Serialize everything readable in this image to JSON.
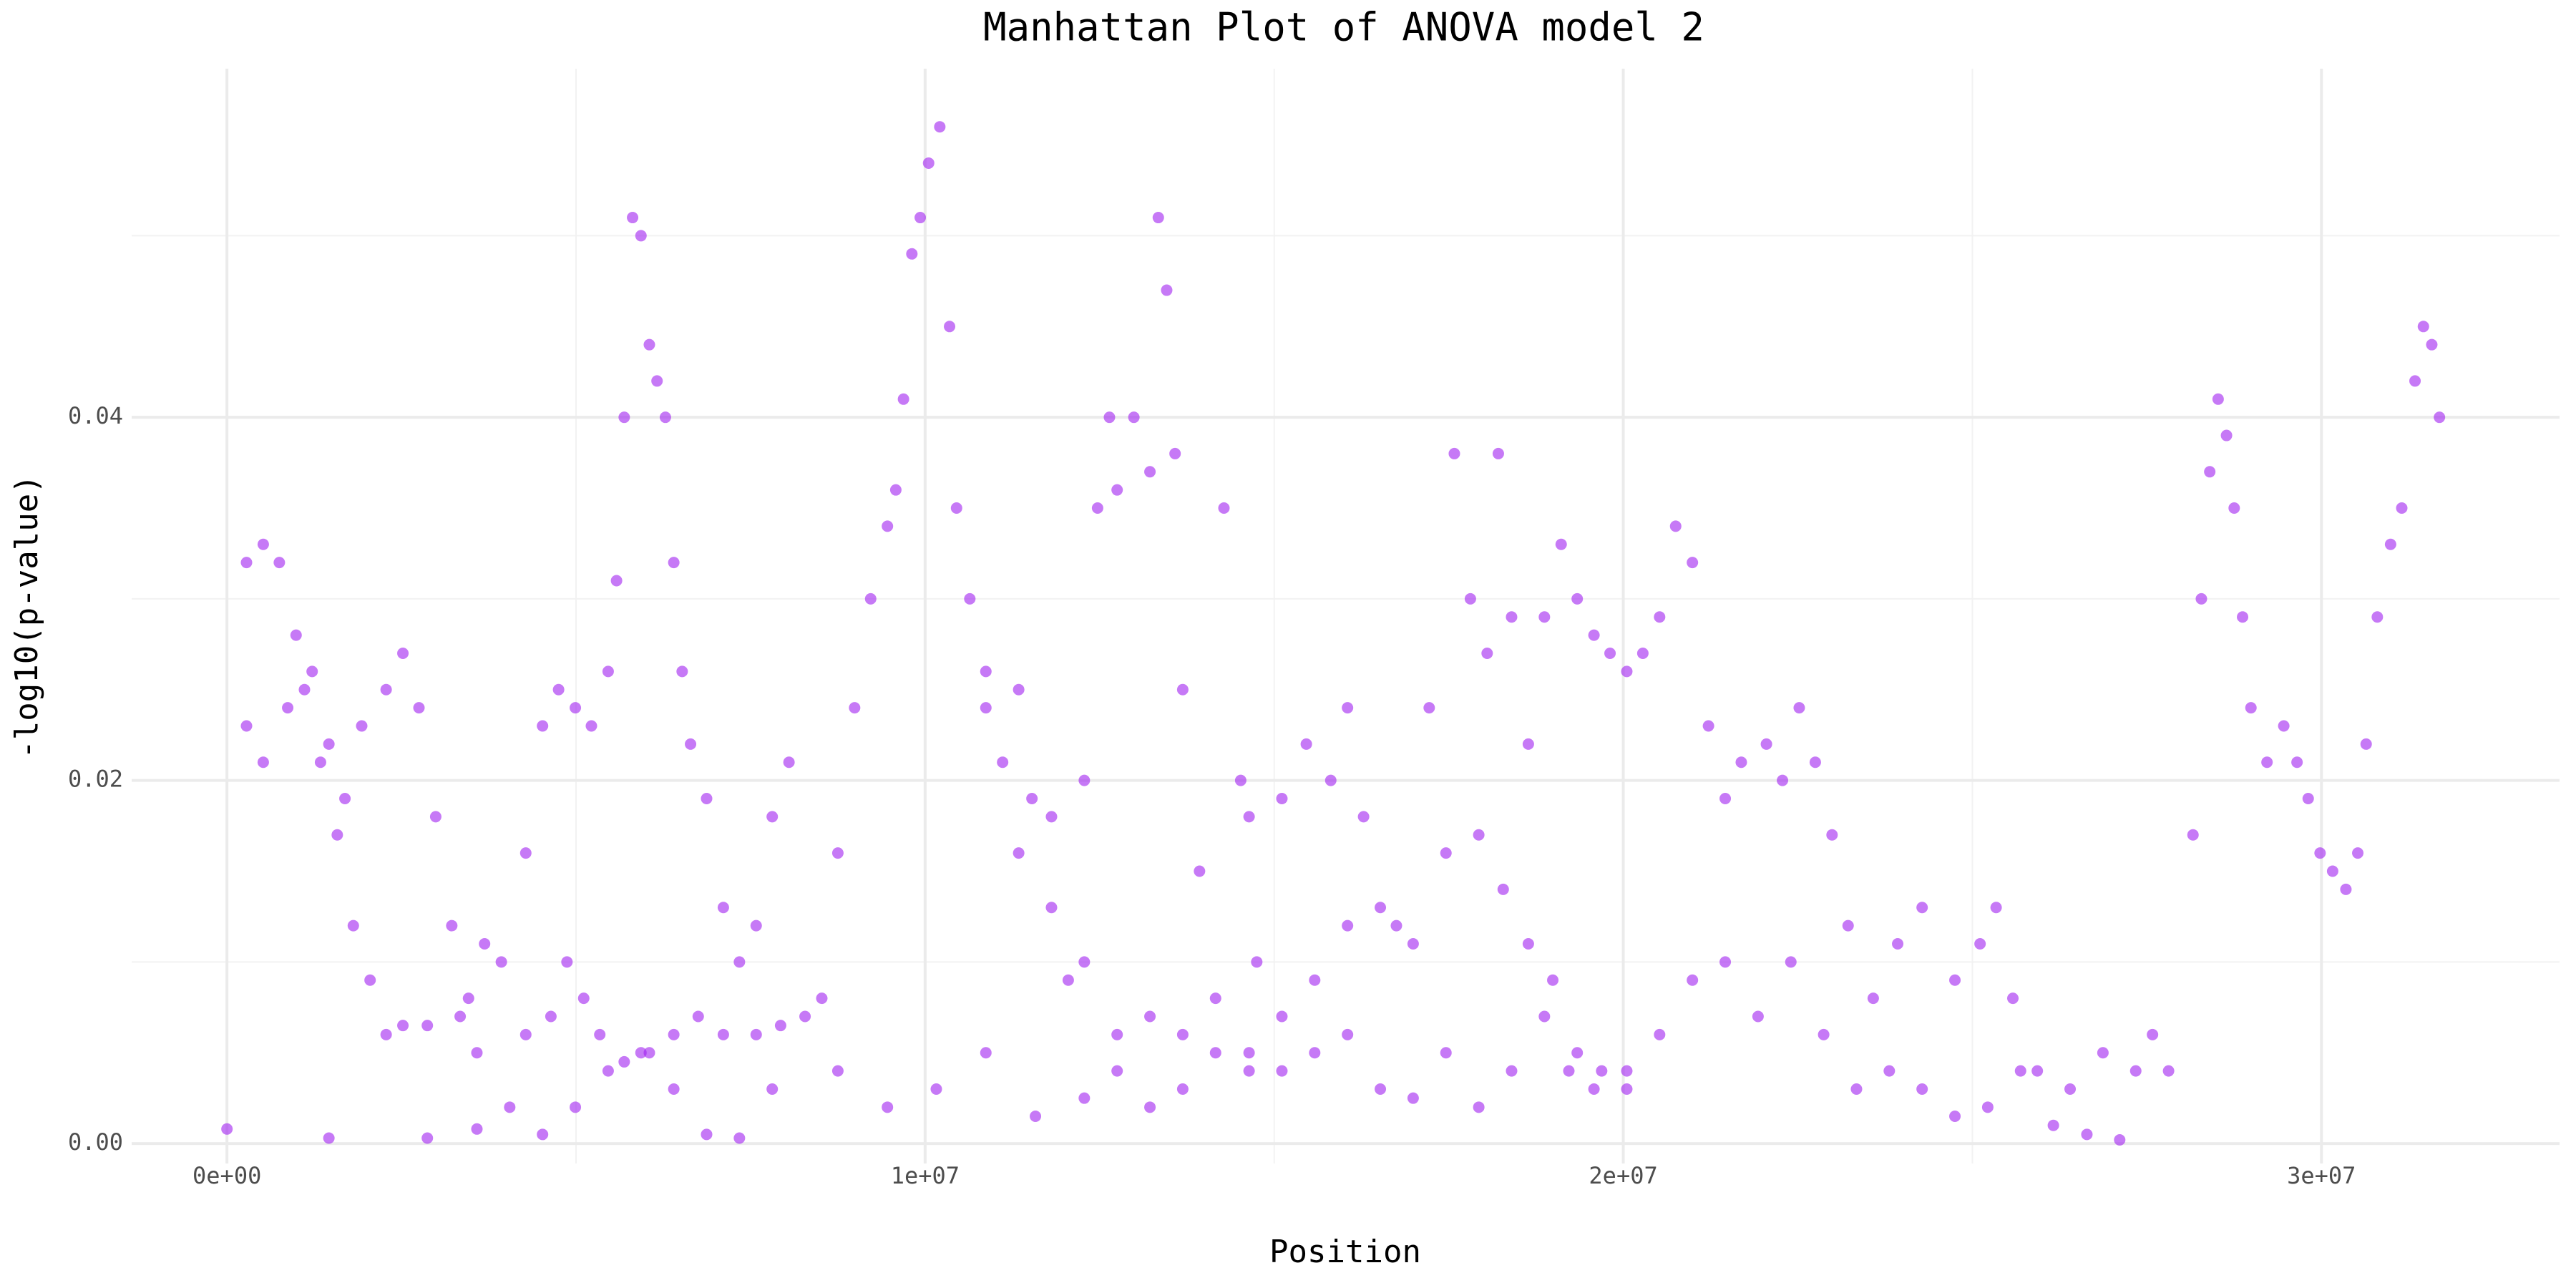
{
  "chart_data": {
    "type": "scatter",
    "title": "Manhattan Plot of ANOVA model 2",
    "x_label": "Position",
    "y_label": "-log10(p-value)",
    "color": "#a020f0",
    "opacity": 0.6,
    "grid": true,
    "xlim": [
      -1365000,
      33410000
    ],
    "ylim": [
      -0.0011,
      0.0592
    ],
    "xticks": [
      {
        "value": 0,
        "label": "0e+00"
      },
      {
        "value": 10000000,
        "label": "1e+07"
      },
      {
        "value": 20000000,
        "label": "2e+07"
      },
      {
        "value": 30000000,
        "label": "3e+07"
      }
    ],
    "yticks": [
      {
        "value": 0,
        "label": "0.00"
      },
      0.02,
      0.04
    ],
    "x_minor_ticks": [
      5000000,
      15000000,
      25000000
    ],
    "y_minor_ticks": [
      0.01,
      0.03,
      0.05
    ],
    "x": [
      280000,
      520000,
      750000,
      990000,
      1110000,
      1340000,
      1580000,
      1810000,
      2050000,
      2280000,
      2520000,
      2870000,
      3340000,
      3580000,
      280000,
      520000,
      870000,
      1220000,
      1460000,
      1690000,
      1930000,
      2280000,
      2520000,
      2750000,
      2990000,
      3220000,
      3460000,
      3690000,
      3930000,
      4280000,
      4640000,
      4870000,
      5110000,
      5340000,
      5690000,
      6050000,
      6400000,
      6750000,
      7110000,
      7580000,
      7930000,
      4280000,
      4520000,
      4750000,
      4990000,
      5220000,
      5460000,
      5580000,
      5690000,
      5810000,
      5930000,
      6050000,
      6160000,
      6280000,
      6400000,
      6520000,
      6640000,
      6870000,
      7110000,
      7340000,
      7580000,
      7810000,
      8050000,
      8520000,
      8750000,
      8990000,
      9220000,
      9460000,
      9580000,
      9690000,
      9810000,
      9930000,
      10050000,
      10210000,
      10350000,
      10450000,
      10640000,
      10870000,
      11110000,
      11340000,
      11530000,
      11810000,
      12050000,
      12280000,
      12470000,
      12640000,
      12750000,
      12990000,
      13220000,
      13340000,
      13460000,
      13580000,
      13690000,
      13930000,
      14280000,
      14520000,
      14750000,
      0,
      1460000,
      2870000,
      3580000,
      4050000,
      4520000,
      4990000,
      5460000,
      5930000,
      6400000,
      6870000,
      7340000,
      7810000,
      8280000,
      8750000,
      9460000,
      10160000,
      10870000,
      11580000,
      12280000,
      12750000,
      13220000,
      13690000,
      14160000,
      14640000,
      15110000,
      15580000,
      16050000,
      16520000,
      16990000,
      17460000,
      17930000,
      18400000,
      18870000,
      19220000,
      19580000,
      20050000,
      20520000,
      20990000,
      21460000,
      21930000,
      22400000,
      22870000,
      23340000,
      23810000,
      24280000,
      24750000,
      25220000,
      25690000,
      26160000,
      26640000,
      27110000,
      14640000,
      15110000,
      15460000,
      15810000,
      16050000,
      16280000,
      16750000,
      17220000,
      17580000,
      17810000,
      18050000,
      18210000,
      18400000,
      18640000,
      18870000,
      19110000,
      19340000,
      19580000,
      19810000,
      20050000,
      20280000,
      20520000,
      20750000,
      20990000,
      21220000,
      21460000,
      21690000,
      22050000,
      22280000,
      22520000,
      22750000,
      22990000,
      23220000,
      23580000,
      23930000,
      24280000,
      24750000,
      25110000,
      25340000,
      25580000,
      25930000,
      26400000,
      26870000,
      27340000,
      27580000,
      27810000,
      28160000,
      28280000,
      28400000,
      28520000,
      28640000,
      28750000,
      28870000,
      28990000,
      29220000,
      29460000,
      29650000,
      29810000,
      29980000,
      30160000,
      30350000,
      30520000,
      30640000,
      30800000,
      30990000,
      31150000,
      31340000,
      31460000,
      31580000,
      31690000,
      10870000,
      11340000,
      11810000,
      12280000,
      12750000,
      13220000,
      13690000,
      14160000,
      14640000,
      15110000,
      15580000,
      16050000,
      16520000,
      16990000,
      17460000,
      17930000,
      18280000,
      18640000,
      18990000,
      19340000,
      19690000,
      20050000
    ],
    "values": [
      0.032,
      0.033,
      0.032,
      0.028,
      0.025,
      0.021,
      0.017,
      0.012,
      0.009,
      0.006,
      0.0065,
      0.0065,
      0.007,
      0.005,
      0.023,
      0.021,
      0.024,
      0.026,
      0.022,
      0.019,
      0.023,
      0.025,
      0.027,
      0.024,
      0.018,
      0.012,
      0.008,
      0.011,
      0.01,
      0.006,
      0.007,
      0.01,
      0.008,
      0.006,
      0.0045,
      0.005,
      0.006,
      0.007,
      0.006,
      0.006,
      0.0065,
      0.016,
      0.023,
      0.025,
      0.024,
      0.023,
      0.026,
      0.031,
      0.04,
      0.051,
      0.05,
      0.044,
      0.042,
      0.04,
      0.032,
      0.026,
      0.022,
      0.019,
      0.013,
      0.01,
      0.012,
      0.018,
      0.021,
      0.008,
      0.016,
      0.024,
      0.03,
      0.034,
      0.036,
      0.041,
      0.049,
      0.051,
      0.054,
      0.056,
      0.045,
      0.035,
      0.03,
      0.026,
      0.021,
      0.025,
      0.019,
      0.013,
      0.009,
      0.02,
      0.035,
      0.04,
      0.036,
      0.04,
      0.037,
      0.051,
      0.047,
      0.038,
      0.025,
      0.015,
      0.035,
      0.02,
      0.01,
      0.0008,
      0.0003,
      0.0003,
      0.0008,
      0.002,
      0.0005,
      0.002,
      0.004,
      0.005,
      0.003,
      0.0005,
      0.0003,
      0.003,
      0.007,
      0.004,
      0.002,
      0.003,
      0.005,
      0.0015,
      0.0025,
      0.004,
      0.002,
      0.003,
      0.008,
      0.005,
      0.004,
      0.005,
      0.006,
      0.003,
      0.0025,
      0.005,
      0.002,
      0.004,
      0.007,
      0.004,
      0.003,
      0.004,
      0.006,
      0.009,
      0.01,
      0.007,
      0.01,
      0.006,
      0.003,
      0.004,
      0.003,
      0.0015,
      0.002,
      0.004,
      0.001,
      0.0005,
      0.0002,
      0.018,
      0.019,
      0.022,
      0.02,
      0.024,
      0.018,
      0.012,
      0.024,
      0.038,
      0.03,
      0.027,
      0.038,
      0.029,
      0.022,
      0.029,
      0.033,
      0.03,
      0.028,
      0.027,
      0.026,
      0.027,
      0.029,
      0.034,
      0.032,
      0.023,
      0.019,
      0.021,
      0.022,
      0.02,
      0.024,
      0.021,
      0.017,
      0.012,
      0.008,
      0.011,
      0.013,
      0.009,
      0.011,
      0.013,
      0.008,
      0.004,
      0.003,
      0.005,
      0.004,
      0.006,
      0.004,
      0.017,
      0.03,
      0.037,
      0.041,
      0.039,
      0.035,
      0.029,
      0.024,
      0.021,
      0.023,
      0.021,
      0.019,
      0.016,
      0.015,
      0.014,
      0.016,
      0.022,
      0.029,
      0.033,
      0.035,
      0.042,
      0.045,
      0.044,
      0.04,
      0.024,
      0.016,
      0.018,
      0.01,
      0.006,
      0.007,
      0.006,
      0.005,
      0.004,
      0.007,
      0.009,
      0.012,
      0.013,
      0.011,
      0.016,
      0.017,
      0.014,
      0.011,
      0.009,
      0.005,
      0.004,
      0.003
    ]
  }
}
